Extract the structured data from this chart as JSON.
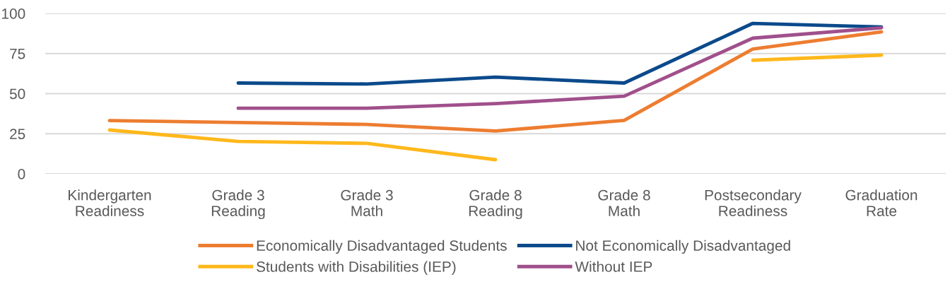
{
  "chart_data": {
    "type": "line",
    "categories": [
      "Kindergarten\nReadiness",
      "Grade 3\nReading",
      "Grade 3\nMath",
      "Grade 8\nReading",
      "Grade 8\nMath",
      "Postsecondary\nReadiness",
      "Graduation\nRate"
    ],
    "series": [
      {
        "name": "Economically Disadvantaged Students",
        "color": "#ed7d31",
        "values": [
          33.2,
          32,
          30.8,
          26.7,
          33.3,
          77.8,
          88.5
        ]
      },
      {
        "name": "Not Economically Disadvantaged",
        "color": "#0b4a8b",
        "values": [
          null,
          56.6,
          56,
          60.3,
          56.6,
          93.8,
          91.6
        ]
      },
      {
        "name": "Students with Disabilities (IEP)",
        "color": "#ffb81c",
        "values": [
          27.3,
          20.2,
          19,
          8.8,
          null,
          70.8,
          74
        ]
      },
      {
        "name": "Without IEP",
        "color": "#a0508c",
        "values": [
          null,
          40.9,
          40.9,
          43.8,
          48.4,
          84.6,
          91
        ]
      }
    ],
    "ylim": [
      0,
      100
    ],
    "yticks": [
      0,
      25,
      50,
      75,
      100
    ],
    "grid": "y",
    "legend": "bottom",
    "marker": "none",
    "line_style": "solid"
  }
}
